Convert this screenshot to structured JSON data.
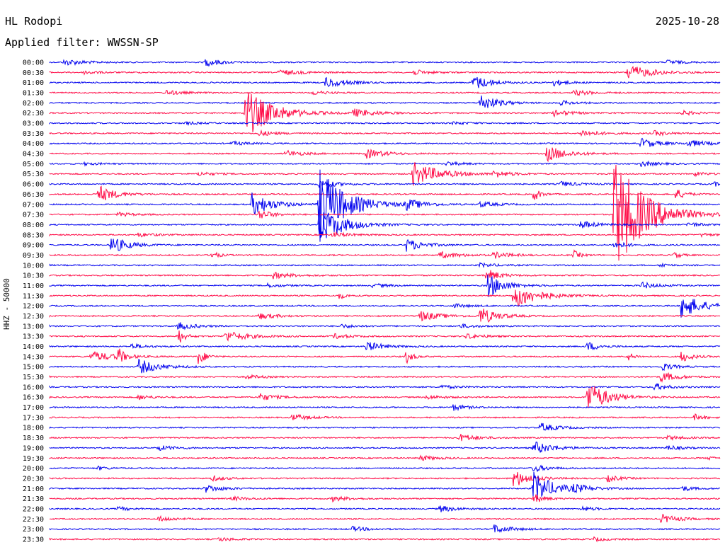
{
  "header": {
    "station": "HL Rodopi",
    "date": "2025-10-28",
    "filter_label": "Applied filter: WWSSN-SP"
  },
  "chart_data": {
    "type": "line",
    "title": "HL Rodopi",
    "ylabel": "HHZ - 50000",
    "row_labels": [
      "00:00",
      "00:30",
      "01:00",
      "01:30",
      "02:00",
      "02:30",
      "03:00",
      "03:30",
      "04:00",
      "04:30",
      "05:00",
      "05:30",
      "06:00",
      "06:30",
      "07:00",
      "07:30",
      "08:00",
      "08:30",
      "09:00",
      "09:30",
      "10:00",
      "10:30",
      "11:00",
      "11:30",
      "12:00",
      "12:30",
      "13:00",
      "13:30",
      "14:00",
      "14:30",
      "15:00",
      "15:30",
      "16:00",
      "16:30",
      "17:00",
      "17:30",
      "18:00",
      "18:30",
      "19:00",
      "19:30",
      "20:00",
      "20:30",
      "21:00",
      "21:30",
      "22:00",
      "22:30",
      "23:00",
      "23:30"
    ],
    "row_minutes": 30,
    "colors": [
      "#0000ee",
      "#ff0a46"
    ],
    "events": [
      [
        {
          "t": 0.02,
          "a": 5,
          "d": 0.06
        },
        {
          "t": 0.23,
          "a": 6,
          "d": 0.05
        },
        {
          "t": 0.92,
          "a": 4,
          "d": 0.04
        }
      ],
      [
        {
          "t": 0.05,
          "a": 3,
          "d": 0.04
        },
        {
          "t": 0.34,
          "a": 4,
          "d": 0.07
        },
        {
          "t": 0.54,
          "a": 4,
          "d": 0.05
        },
        {
          "t": 0.86,
          "a": 12,
          "d": 0.07
        }
      ],
      [
        {
          "t": 0.41,
          "a": 8,
          "d": 0.06
        },
        {
          "t": 0.63,
          "a": 12,
          "d": 0.05
        },
        {
          "t": 0.75,
          "a": 5,
          "d": 0.04
        }
      ],
      [
        {
          "t": 0.17,
          "a": 4,
          "d": 0.05
        },
        {
          "t": 0.39,
          "a": 3,
          "d": 0.05
        },
        {
          "t": 0.78,
          "a": 4,
          "d": 0.06
        }
      ],
      [
        {
          "t": 0.64,
          "a": 14,
          "d": 0.05
        },
        {
          "t": 0.76,
          "a": 3,
          "d": 0.05
        }
      ],
      [
        {
          "t": 0.29,
          "a": 38,
          "d": 0.08
        },
        {
          "t": 0.45,
          "a": 6,
          "d": 0.07
        },
        {
          "t": 0.75,
          "a": 5,
          "d": 0.05
        },
        {
          "t": 0.94,
          "a": 4,
          "d": 0.04
        }
      ],
      [
        {
          "t": 0.2,
          "a": 2,
          "d": 0.05
        },
        {
          "t": 0.6,
          "a": 2,
          "d": 0.05
        }
      ],
      [
        {
          "t": 0.31,
          "a": 4,
          "d": 0.05
        },
        {
          "t": 0.79,
          "a": 5,
          "d": 0.06
        },
        {
          "t": 0.9,
          "a": 4,
          "d": 0.04
        }
      ],
      [
        {
          "t": 0.27,
          "a": 3,
          "d": 0.05
        },
        {
          "t": 0.88,
          "a": 8,
          "d": 0.05
        },
        {
          "t": 0.95,
          "a": 6,
          "d": 0.05
        }
      ],
      [
        {
          "t": 0.35,
          "a": 5,
          "d": 0.05
        },
        {
          "t": 0.47,
          "a": 7,
          "d": 0.06
        },
        {
          "t": 0.74,
          "a": 12,
          "d": 0.06
        }
      ],
      [
        {
          "t": 0.05,
          "a": 2,
          "d": 0.05
        },
        {
          "t": 0.59,
          "a": 3,
          "d": 0.05
        },
        {
          "t": 0.88,
          "a": 4,
          "d": 0.05
        }
      ],
      [
        {
          "t": 0.22,
          "a": 3,
          "d": 0.05
        },
        {
          "t": 0.54,
          "a": 18,
          "d": 0.08
        },
        {
          "t": 0.66,
          "a": 5,
          "d": 0.05
        },
        {
          "t": 0.96,
          "a": 3,
          "d": 0.04
        }
      ],
      [
        {
          "t": 0.4,
          "a": 7,
          "d": 0.05
        },
        {
          "t": 0.76,
          "a": 4,
          "d": 0.05
        },
        {
          "t": 0.99,
          "a": 6,
          "d": 0.01
        }
      ],
      [
        {
          "t": 0.07,
          "a": 14,
          "d": 0.05
        },
        {
          "t": 0.72,
          "a": 12,
          "d": 0.02
        },
        {
          "t": 0.93,
          "a": 10,
          "d": 0.03
        }
      ],
      [
        {
          "t": 0.3,
          "a": 18,
          "d": 0.06
        },
        {
          "t": 0.4,
          "a": 55,
          "d": 0.08
        },
        {
          "t": 0.53,
          "a": 8,
          "d": 0.05
        },
        {
          "t": 0.64,
          "a": 4,
          "d": 0.05
        }
      ],
      [
        {
          "t": 0.1,
          "a": 3,
          "d": 0.05
        },
        {
          "t": 0.31,
          "a": 8,
          "d": 0.04
        },
        {
          "t": 0.84,
          "a": 90,
          "d": 0.09
        }
      ],
      [
        {
          "t": 0.4,
          "a": 30,
          "d": 0.07
        },
        {
          "t": 0.79,
          "a": 6,
          "d": 0.05
        },
        {
          "t": 0.95,
          "a": 4,
          "d": 0.04
        }
      ],
      [
        {
          "t": 0.13,
          "a": 3,
          "d": 0.05
        },
        {
          "t": 0.42,
          "a": 4,
          "d": 0.05
        },
        {
          "t": 0.97,
          "a": 3,
          "d": 0.03
        }
      ],
      [
        {
          "t": 0.09,
          "a": 14,
          "d": 0.05
        },
        {
          "t": 0.53,
          "a": 10,
          "d": 0.05
        },
        {
          "t": 0.84,
          "a": 6,
          "d": 0.04
        }
      ],
      [
        {
          "t": 0.24,
          "a": 8,
          "d": 0.02
        },
        {
          "t": 0.58,
          "a": 5,
          "d": 0.06
        },
        {
          "t": 0.66,
          "a": 5,
          "d": 0.05
        },
        {
          "t": 0.78,
          "a": 8,
          "d": 0.02
        },
        {
          "t": 0.93,
          "a": 6,
          "d": 0.02
        }
      ],
      [
        {
          "t": 0.64,
          "a": 3,
          "d": 0.05
        },
        {
          "t": 0.91,
          "a": 5,
          "d": 0.02
        }
      ],
      [
        {
          "t": 0.33,
          "a": 5,
          "d": 0.06
        },
        {
          "t": 0.65,
          "a": 10,
          "d": 0.04
        }
      ],
      [
        {
          "t": 0.32,
          "a": 3,
          "d": 0.05
        },
        {
          "t": 0.48,
          "a": 3,
          "d": 0.05
        },
        {
          "t": 0.65,
          "a": 20,
          "d": 0.05
        },
        {
          "t": 0.88,
          "a": 5,
          "d": 0.05
        }
      ],
      [
        {
          "t": 0.43,
          "a": 6,
          "d": 0.02
        },
        {
          "t": 0.69,
          "a": 20,
          "d": 0.07
        }
      ],
      [
        {
          "t": 0.6,
          "a": 3,
          "d": 0.05
        },
        {
          "t": 0.94,
          "a": 20,
          "d": 0.06
        }
      ],
      [
        {
          "t": 0.31,
          "a": 5,
          "d": 0.05
        },
        {
          "t": 0.55,
          "a": 8,
          "d": 0.06
        },
        {
          "t": 0.64,
          "a": 14,
          "d": 0.05
        }
      ],
      [
        {
          "t": 0.19,
          "a": 6,
          "d": 0.05
        },
        {
          "t": 0.43,
          "a": 3,
          "d": 0.05
        },
        {
          "t": 0.61,
          "a": 3,
          "d": 0.05
        }
      ],
      [
        {
          "t": 0.19,
          "a": 14,
          "d": 0.02
        },
        {
          "t": 0.26,
          "a": 8,
          "d": 0.07
        },
        {
          "t": 0.42,
          "a": 4,
          "d": 0.05
        },
        {
          "t": 0.62,
          "a": 4,
          "d": 0.05
        }
      ],
      [
        {
          "t": 0.12,
          "a": 4,
          "d": 0.04
        },
        {
          "t": 0.47,
          "a": 8,
          "d": 0.05
        },
        {
          "t": 0.8,
          "a": 7,
          "d": 0.04
        }
      ],
      [
        {
          "t": 0.06,
          "a": 8,
          "d": 0.07
        },
        {
          "t": 0.1,
          "a": 14,
          "d": 0.02
        },
        {
          "t": 0.22,
          "a": 16,
          "d": 0.02
        },
        {
          "t": 0.53,
          "a": 12,
          "d": 0.02
        },
        {
          "t": 0.86,
          "a": 8,
          "d": 0.02
        },
        {
          "t": 0.94,
          "a": 10,
          "d": 0.03
        }
      ],
      [
        {
          "t": 0.13,
          "a": 12,
          "d": 0.06
        },
        {
          "t": 0.91,
          "a": 6,
          "d": 0.04
        }
      ],
      [
        {
          "t": 0.29,
          "a": 3,
          "d": 0.05
        },
        {
          "t": 0.91,
          "a": 8,
          "d": 0.05
        }
      ],
      [
        {
          "t": 0.58,
          "a": 3,
          "d": 0.05
        },
        {
          "t": 0.9,
          "a": 6,
          "d": 0.04
        }
      ],
      [
        {
          "t": 0.13,
          "a": 4,
          "d": 0.04
        },
        {
          "t": 0.31,
          "a": 6,
          "d": 0.05
        },
        {
          "t": 0.56,
          "a": 3,
          "d": 0.05
        },
        {
          "t": 0.8,
          "a": 25,
          "d": 0.06
        }
      ],
      [
        {
          "t": 0.6,
          "a": 5,
          "d": 0.04
        }
      ],
      [
        {
          "t": 0.36,
          "a": 5,
          "d": 0.05
        },
        {
          "t": 0.96,
          "a": 5,
          "d": 0.03
        }
      ],
      [
        {
          "t": 0.73,
          "a": 7,
          "d": 0.05
        }
      ],
      [
        {
          "t": 0.61,
          "a": 6,
          "d": 0.05
        },
        {
          "t": 0.92,
          "a": 3,
          "d": 0.05
        }
      ],
      [
        {
          "t": 0.16,
          "a": 4,
          "d": 0.05
        },
        {
          "t": 0.72,
          "a": 10,
          "d": 0.06
        },
        {
          "t": 0.92,
          "a": 4,
          "d": 0.04
        }
      ],
      [
        {
          "t": 0.55,
          "a": 4,
          "d": 0.05
        },
        {
          "t": 0.98,
          "a": 3,
          "d": 0.02
        }
      ],
      [
        {
          "t": 0.07,
          "a": 3,
          "d": 0.03
        },
        {
          "t": 0.72,
          "a": 6,
          "d": 0.04
        }
      ],
      [
        {
          "t": 0.24,
          "a": 4,
          "d": 0.04
        },
        {
          "t": 0.69,
          "a": 14,
          "d": 0.05
        },
        {
          "t": 0.83,
          "a": 5,
          "d": 0.04
        }
      ],
      [
        {
          "t": 0.23,
          "a": 6,
          "d": 0.05
        },
        {
          "t": 0.72,
          "a": 25,
          "d": 0.06
        },
        {
          "t": 0.78,
          "a": 5,
          "d": 0.05
        },
        {
          "t": 0.94,
          "a": 4,
          "d": 0.04
        }
      ],
      [
        {
          "t": 0.27,
          "a": 3,
          "d": 0.05
        },
        {
          "t": 0.42,
          "a": 4,
          "d": 0.05
        },
        {
          "t": 0.72,
          "a": 8,
          "d": 0.03
        }
      ],
      [
        {
          "t": 0.1,
          "a": 3,
          "d": 0.04
        },
        {
          "t": 0.58,
          "a": 5,
          "d": 0.05
        },
        {
          "t": 0.79,
          "a": 4,
          "d": 0.04
        }
      ],
      [
        {
          "t": 0.16,
          "a": 4,
          "d": 0.05
        },
        {
          "t": 0.91,
          "a": 7,
          "d": 0.05
        }
      ],
      [
        {
          "t": 0.45,
          "a": 4,
          "d": 0.04
        },
        {
          "t": 0.66,
          "a": 7,
          "d": 0.05
        }
      ],
      [
        {
          "t": 0.25,
          "a": 3,
          "d": 0.05
        },
        {
          "t": 0.81,
          "a": 3,
          "d": 0.04
        }
      ]
    ]
  }
}
